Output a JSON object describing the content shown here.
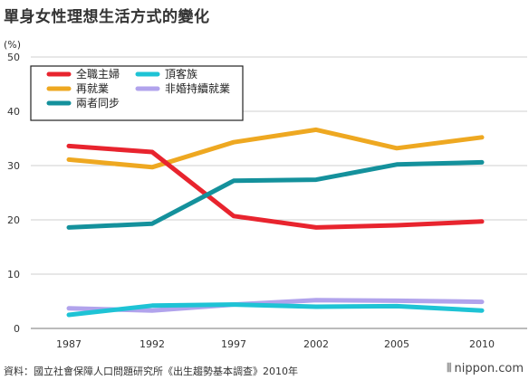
{
  "title": "單身女性理想生活方式的變化",
  "chart_data": {
    "type": "line",
    "title": "單身女性理想生活方式的變化",
    "ylabel": "(%)",
    "xlabel": "",
    "ylim": [
      0,
      50
    ],
    "yticks": [
      0,
      10,
      20,
      30,
      40,
      50
    ],
    "categories": [
      "1987",
      "1992",
      "1997",
      "2002",
      "2005",
      "2010"
    ],
    "grid": true,
    "legend_position": "top-left",
    "series": [
      {
        "name": "全職主婦",
        "color": "#e8242e",
        "values": [
          33.6,
          32.5,
          20.7,
          18.6,
          19.0,
          19.7
        ]
      },
      {
        "name": "再就業",
        "color": "#eea821",
        "values": [
          31.1,
          29.7,
          34.3,
          36.6,
          33.2,
          35.2
        ]
      },
      {
        "name": "兩者同步",
        "color": "#14919c",
        "values": [
          18.6,
          19.3,
          27.2,
          27.4,
          30.2,
          30.6
        ]
      },
      {
        "name": "頂客族",
        "color": "#1ec3d5",
        "values": [
          2.5,
          4.2,
          4.4,
          4.0,
          4.1,
          3.3
        ]
      },
      {
        "name": "非婚持續就業",
        "color": "#b1a3ec",
        "values": [
          3.7,
          3.3,
          4.4,
          5.2,
          5.1,
          4.9
        ]
      }
    ]
  },
  "footer": {
    "source_prefix": "資料：國立社會保障人口問題研究所《出生趨勢基本調查》",
    "source_year": "2010年"
  },
  "logo": {
    "mark": "⫴",
    "text": "nippon.com"
  }
}
